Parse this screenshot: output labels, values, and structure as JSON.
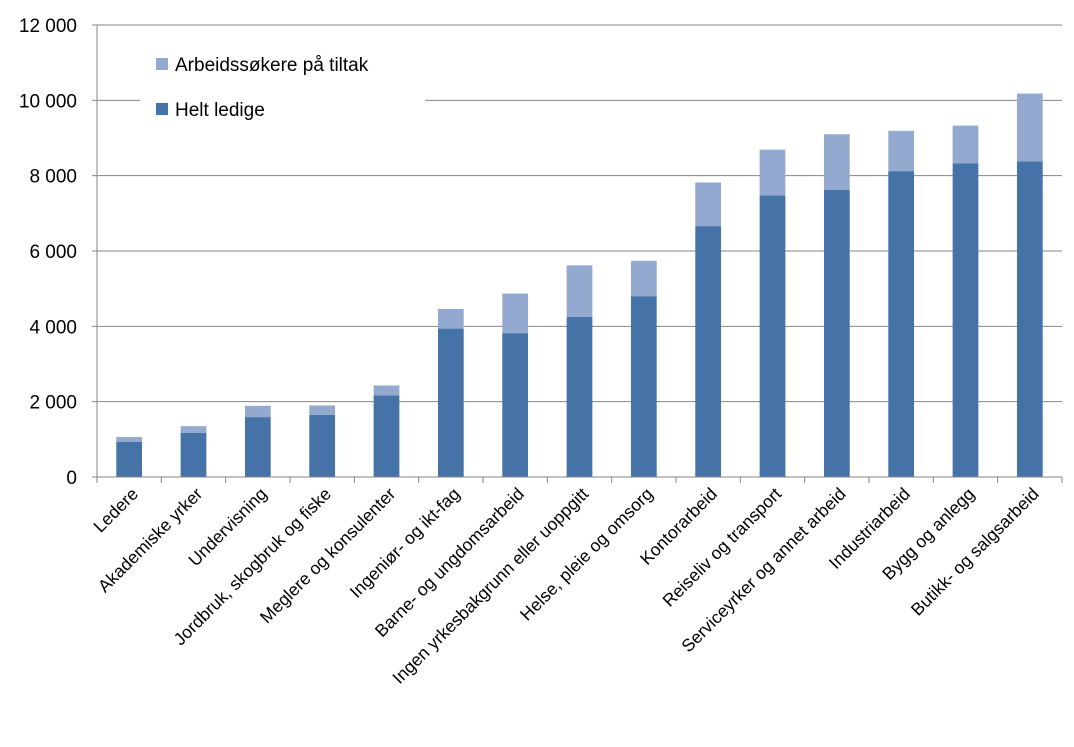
{
  "chart_data": {
    "type": "bar",
    "stacked": true,
    "categories": [
      "Ledere",
      "Akademiske yrker",
      "Undervisning",
      "Jordbruk, skogbruk og fiske",
      "Meglere og konsulenter",
      "Ingeniør- og ikt-fag",
      "Barne- og ungdomsarbeid",
      "Ingen yrkesbakgrunn eller uoppgitt",
      "Helse, pleie og omsorg",
      "Kontorarbeid",
      "Reiseliv og transport",
      "Serviceyrker og annet arbeid",
      "Industriarbeid",
      "Bygg og anlegg",
      "Butikk- og salgsarbeid"
    ],
    "series": [
      {
        "name": "Helt ledige",
        "color": "#4572A7",
        "values": [
          930,
          1170,
          1590,
          1650,
          2170,
          3940,
          3820,
          4250,
          4800,
          6660,
          7480,
          7620,
          8120,
          8330,
          8380
        ]
      },
      {
        "name": "Arbeidssøkere på tiltak",
        "color": "#93A9CF",
        "values": [
          130,
          180,
          300,
          250,
          260,
          520,
          1050,
          1370,
          940,
          1160,
          1210,
          1480,
          1070,
          1000,
          1800
        ]
      }
    ],
    "ylim": [
      0,
      12000
    ],
    "yticks": [
      0,
      2000,
      4000,
      6000,
      8000,
      10000,
      12000
    ],
    "ytick_labels": [
      "0",
      "2 000",
      "4 000",
      "6 000",
      "8 000",
      "10 000",
      "12 000"
    ],
    "grid": "horizontal",
    "legend_position": "top-left",
    "legend_order": [
      "Arbeidssøkere på tiltak",
      "Helt ledige"
    ],
    "title": "",
    "xlabel": "",
    "ylabel": ""
  }
}
